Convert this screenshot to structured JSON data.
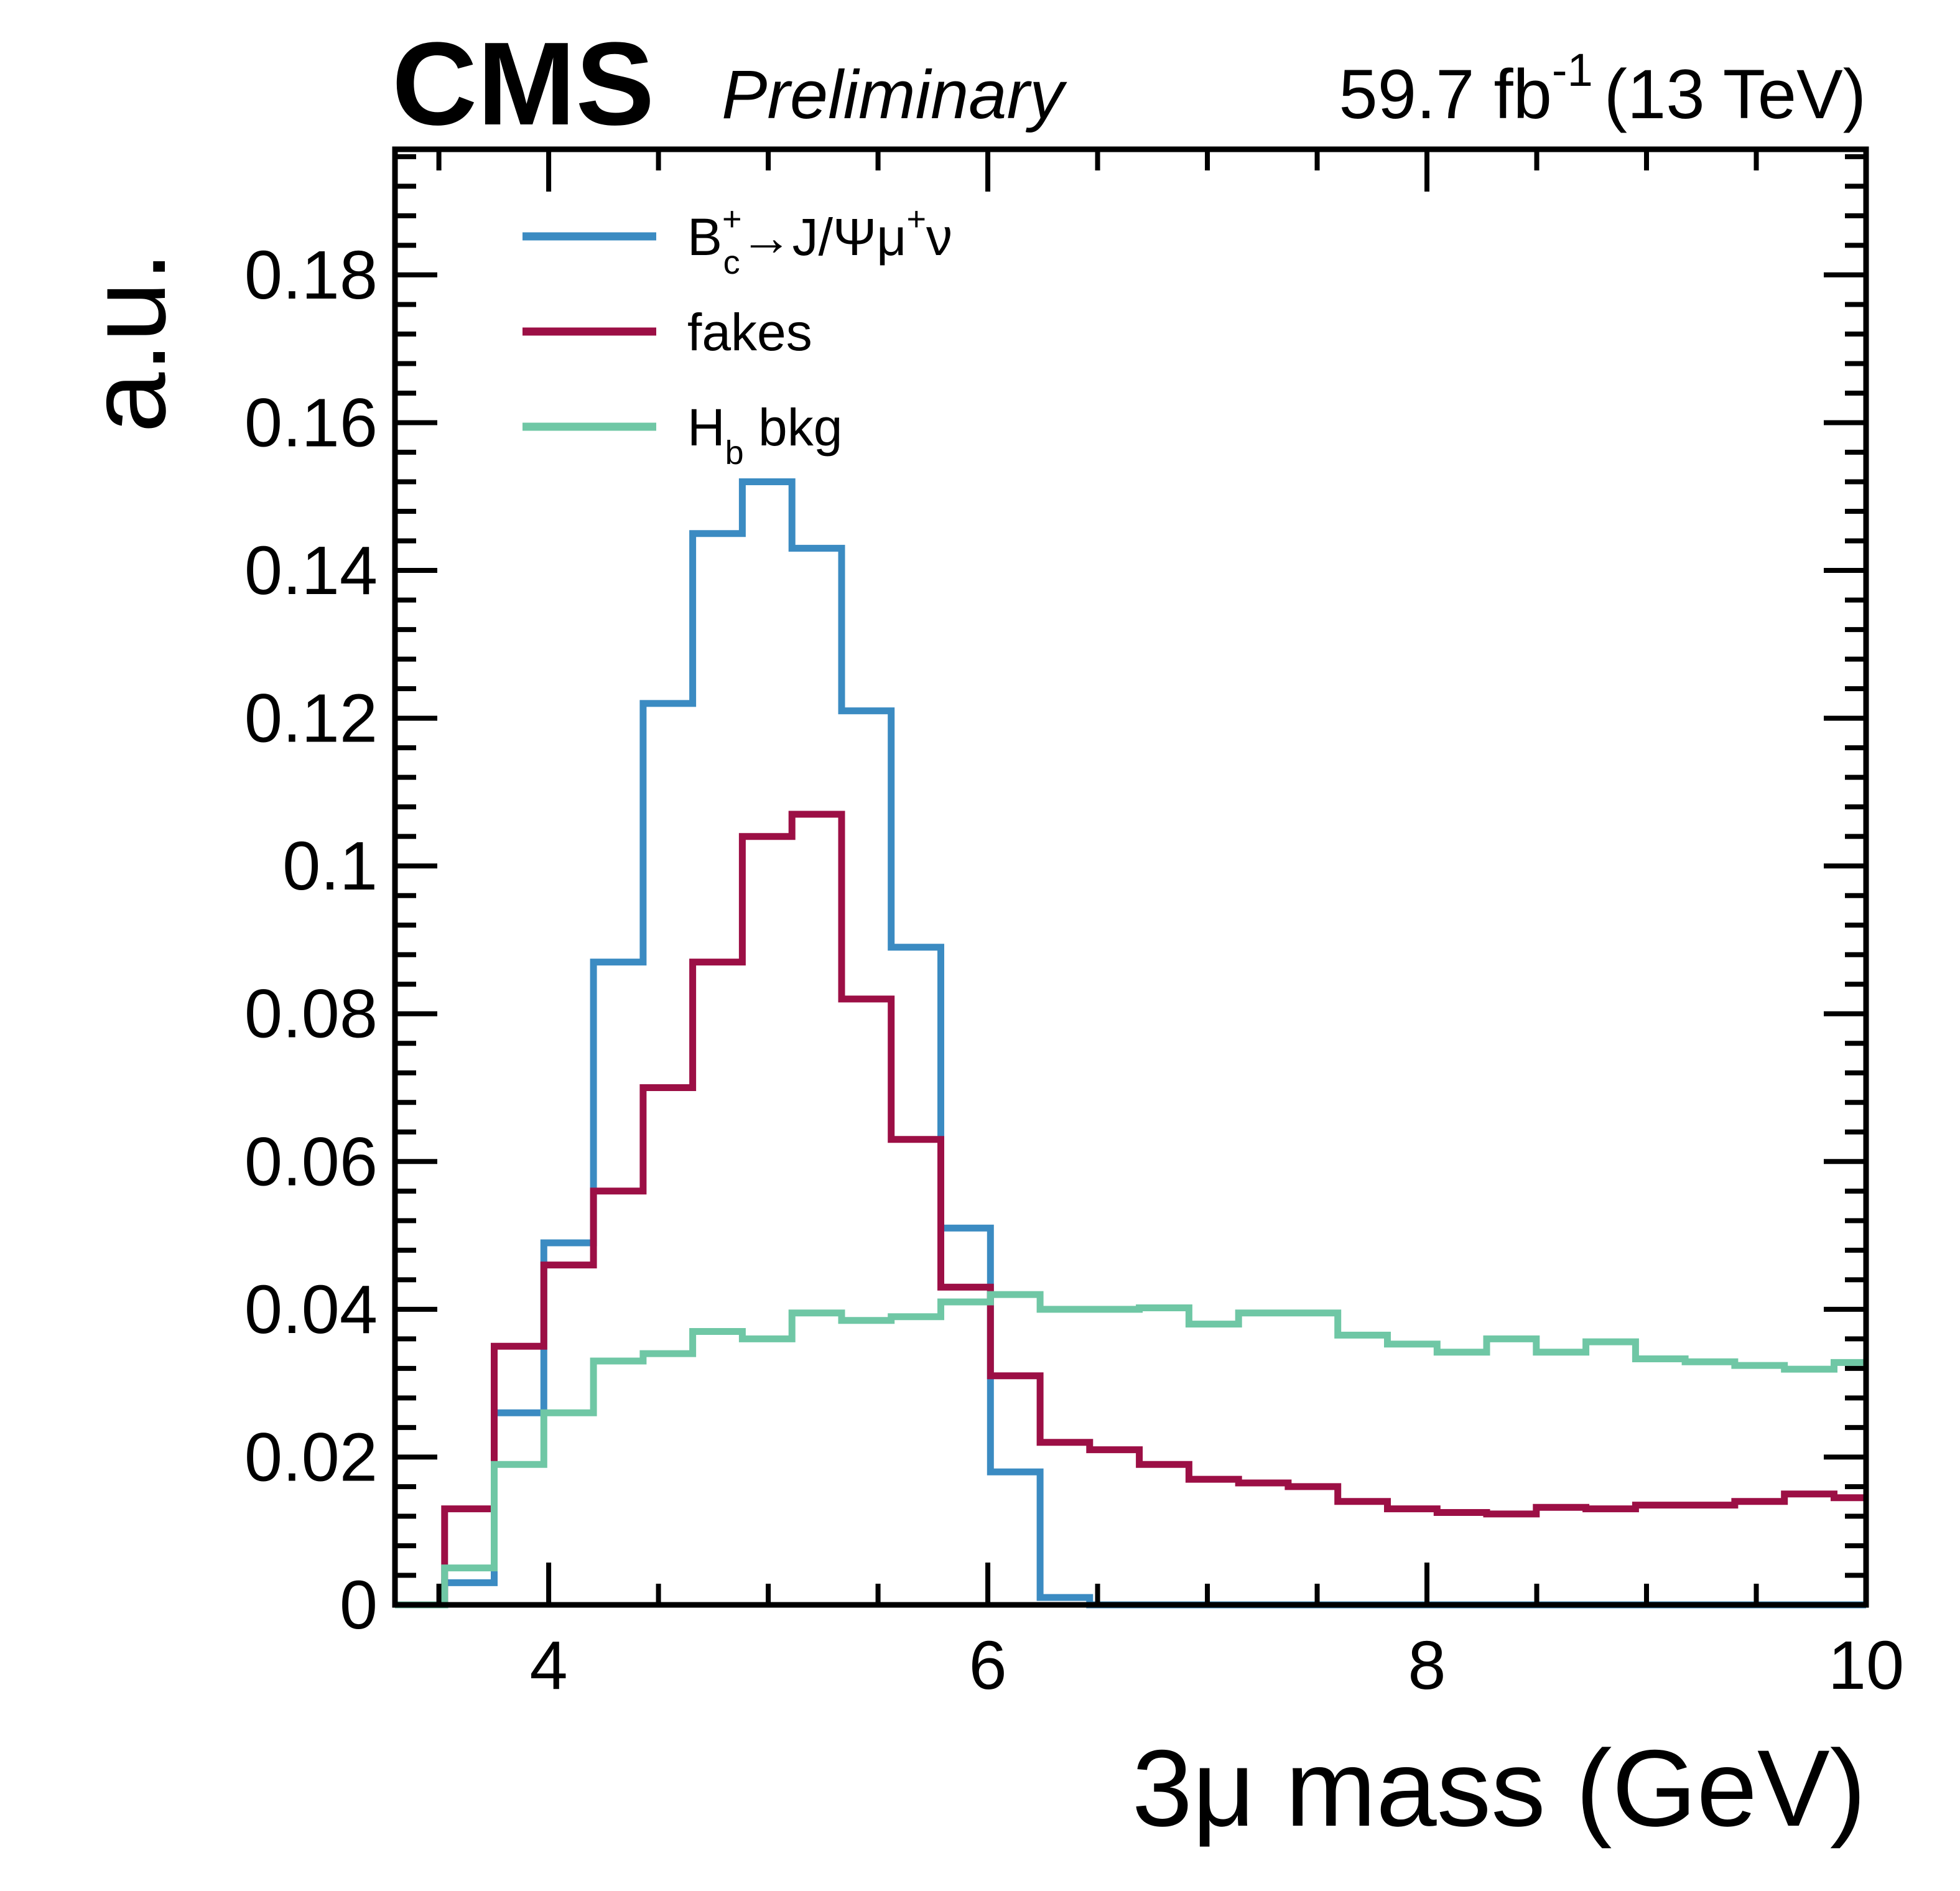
{
  "header": {
    "experiment": "CMS",
    "status": "Preliminary",
    "luminosity": "59.7 fb",
    "luminosity_exp": "-1",
    "energy": "(13 TeV)"
  },
  "legend": {
    "bc": {
      "base": "B",
      "sub": "c",
      "sup": "+",
      "decay": "→J/Ψμ",
      "decay_sup": "+",
      "tail": "ν"
    },
    "fakes": {
      "label": "fakes"
    },
    "hb": {
      "base": "H",
      "sub": "b",
      "tail": " bkg"
    }
  },
  "chart_data": {
    "type": "line",
    "step": "histogram",
    "xlabel": "3μ mass (GeV)",
    "ylabel": "a.u.",
    "xlim": [
      3.3,
      10
    ],
    "ylim": [
      0,
      0.197
    ],
    "xticks": [
      4,
      6,
      8,
      10
    ],
    "xtick_labels": [
      "4",
      "6",
      "8",
      "10"
    ],
    "yticks": [
      0,
      0.02,
      0.04,
      0.06,
      0.08,
      0.1,
      0.12,
      0.14,
      0.16,
      0.18
    ],
    "ytick_labels": [
      "0",
      "0.02",
      "0.04",
      "0.06",
      "0.08",
      "0.1",
      "0.12",
      "0.14",
      "0.16",
      "0.18"
    ],
    "bin_edges": [
      3.3,
      3.526,
      3.752,
      3.978,
      4.204,
      4.43,
      4.656,
      4.882,
      5.108,
      5.334,
      5.56,
      5.786,
      6.012,
      6.238,
      6.464,
      6.69,
      6.916,
      7.142,
      7.368,
      7.594,
      7.82,
      8.046,
      8.272,
      8.498,
      8.724,
      8.95,
      9.176,
      9.402,
      9.628,
      9.854,
      10.0
    ],
    "series": [
      {
        "name": "B_c^+→J/Ψμ^+ν",
        "color": "#3b8bc2",
        "values": [
          0.0,
          0.003,
          0.026,
          0.049,
          0.087,
          0.122,
          0.145,
          0.152,
          0.143,
          0.121,
          0.089,
          0.051,
          0.018,
          0.001,
          0.0,
          0.0,
          0.0,
          0.0,
          0.0,
          0.0,
          0.0,
          0.0,
          0.0,
          0.0,
          0.0,
          0.0,
          0.0,
          0.0,
          0.0,
          0.0
        ]
      },
      {
        "name": "fakes",
        "color": "#9c0f45",
        "values": [
          0.0,
          0.013,
          0.035,
          0.046,
          0.056,
          0.07,
          0.087,
          0.104,
          0.107,
          0.082,
          0.063,
          0.043,
          0.031,
          0.022,
          0.021,
          0.019,
          0.017,
          0.0165,
          0.016,
          0.014,
          0.013,
          0.0125,
          0.0123,
          0.0132,
          0.013,
          0.0135,
          0.0135,
          0.014,
          0.015,
          0.0145
        ]
      },
      {
        "name": "H_b bkg",
        "color": "#6fc7a5",
        "values": [
          0.0,
          0.005,
          0.019,
          0.026,
          0.033,
          0.034,
          0.037,
          0.036,
          0.0395,
          0.0385,
          0.039,
          0.041,
          0.042,
          0.04,
          0.04,
          0.0402,
          0.038,
          0.0395,
          0.0395,
          0.0365,
          0.0353,
          0.0342,
          0.036,
          0.0342,
          0.0356,
          0.0333,
          0.0329,
          0.0324,
          0.0319,
          0.0328
        ]
      }
    ]
  }
}
